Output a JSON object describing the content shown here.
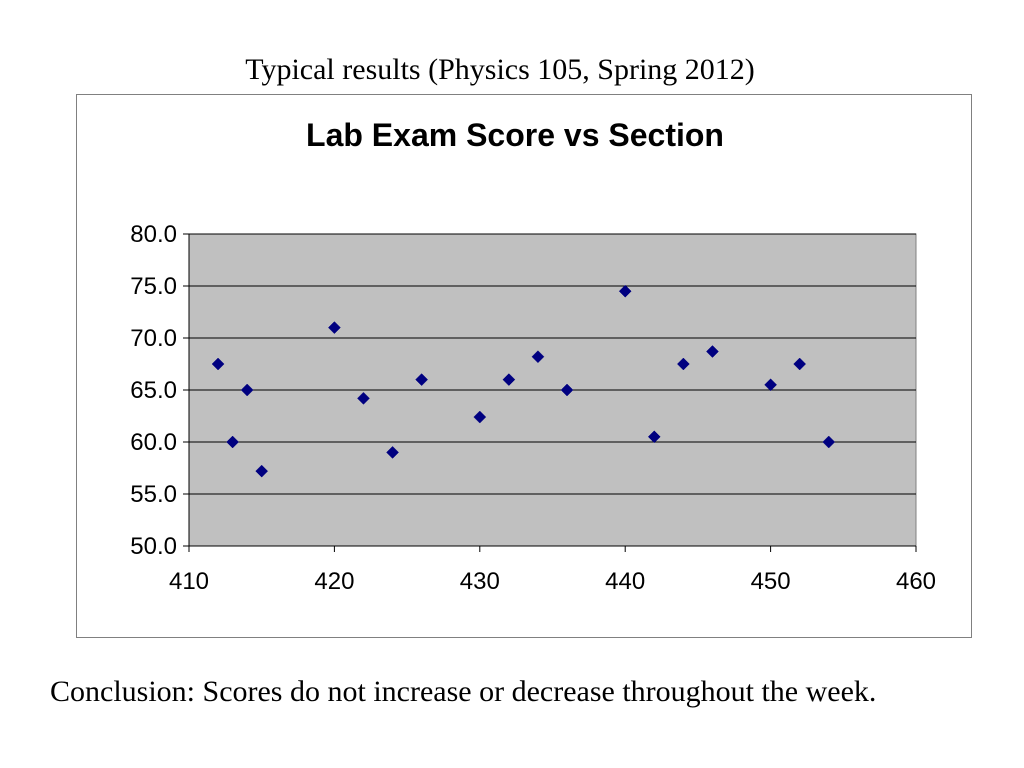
{
  "slide": {
    "title": "Typical results (Physics 105, Spring 2012)",
    "conclusion": "Conclusion:  Scores do not increase or decrease throughout the week."
  },
  "chart_data": {
    "type": "scatter",
    "title": "Lab Exam Score vs Section",
    "xlabel": "",
    "ylabel": "",
    "xlim": [
      410,
      460
    ],
    "ylim": [
      50,
      80
    ],
    "x_ticks": [
      410,
      420,
      430,
      440,
      450,
      460
    ],
    "y_ticks": [
      50,
      55,
      60,
      65,
      70,
      75,
      80
    ],
    "y_tick_labels": [
      "50.0",
      "55.0",
      "60.0",
      "65.0",
      "70.0",
      "75.0",
      "80.0"
    ],
    "grid": true,
    "legend": "none",
    "plot_background": "#c0c0c0",
    "marker_color": "#000080",
    "marker": "diamond",
    "points": [
      {
        "x": 412,
        "y": 67.5
      },
      {
        "x": 413,
        "y": 60.0
      },
      {
        "x": 414,
        "y": 65.0
      },
      {
        "x": 415,
        "y": 57.2
      },
      {
        "x": 420,
        "y": 71.0
      },
      {
        "x": 422,
        "y": 64.2
      },
      {
        "x": 424,
        "y": 59.0
      },
      {
        "x": 426,
        "y": 66.0
      },
      {
        "x": 430,
        "y": 62.4
      },
      {
        "x": 432,
        "y": 66.0
      },
      {
        "x": 434,
        "y": 68.2
      },
      {
        "x": 436,
        "y": 65.0
      },
      {
        "x": 440,
        "y": 74.5
      },
      {
        "x": 442,
        "y": 60.5
      },
      {
        "x": 444,
        "y": 67.5
      },
      {
        "x": 446,
        "y": 68.7
      },
      {
        "x": 450,
        "y": 65.5
      },
      {
        "x": 452,
        "y": 67.5
      },
      {
        "x": 454,
        "y": 60.0
      }
    ]
  }
}
